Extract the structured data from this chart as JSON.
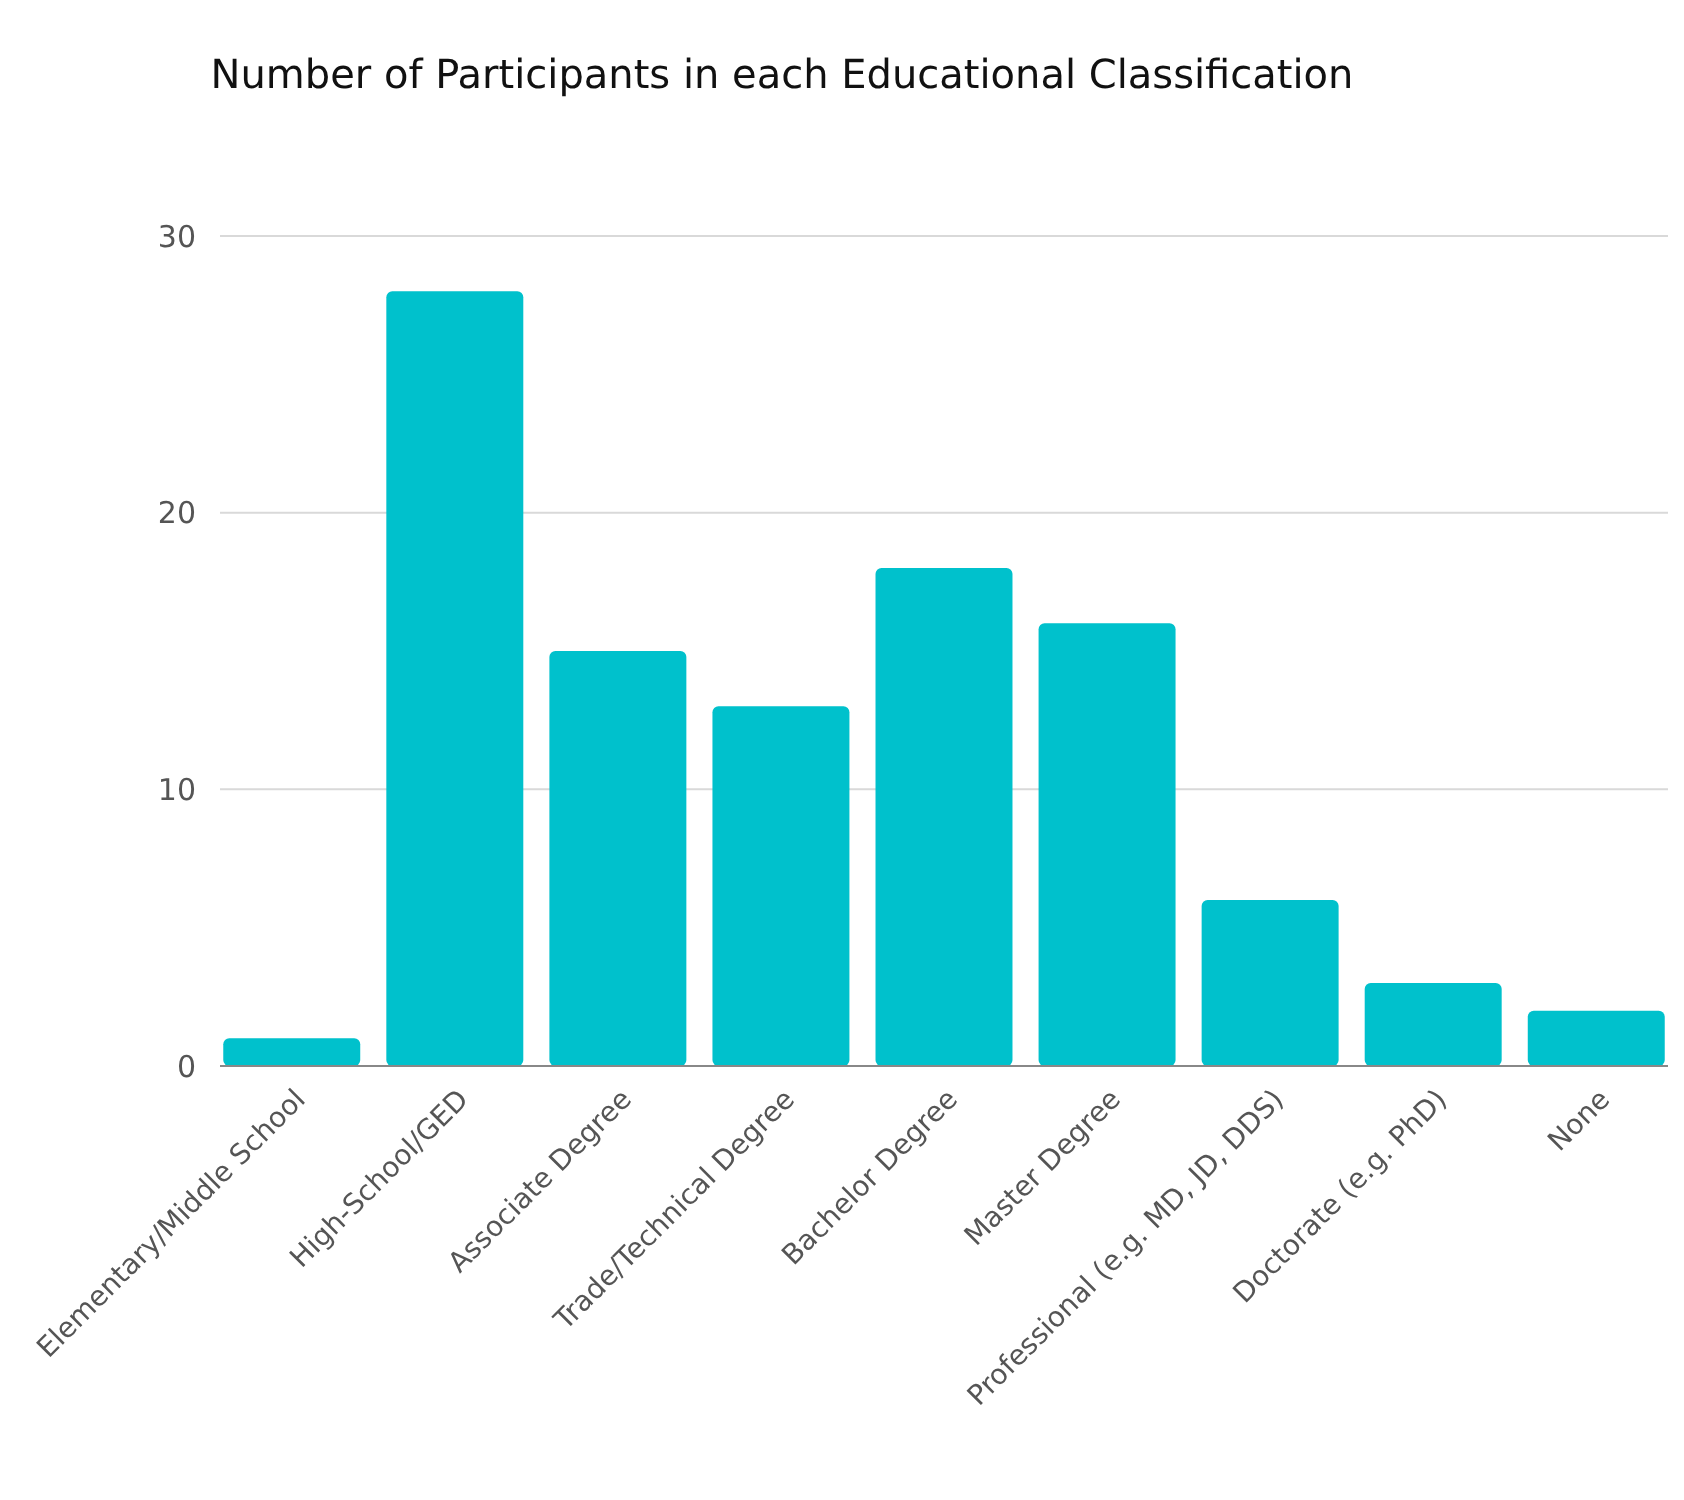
{
  "chart_data": {
    "type": "bar",
    "title": "Number of Participants in each Educational Classification",
    "categories": [
      "Elementary/Middle School",
      "High-School/GED",
      "Associate Degree",
      "Trade/Technical Degree",
      "Bachelor Degree",
      "Master Degree",
      "Professional (e.g. MD, JD, DDS)",
      "Doctorate (e.g. PhD)",
      "None"
    ],
    "values": [
      1,
      28,
      15,
      13,
      18,
      16,
      6,
      3,
      2
    ],
    "color": "#00c1cc",
    "ylim": [
      0,
      30
    ],
    "yticks": [
      0,
      10,
      20,
      30
    ],
    "grid": "y"
  }
}
